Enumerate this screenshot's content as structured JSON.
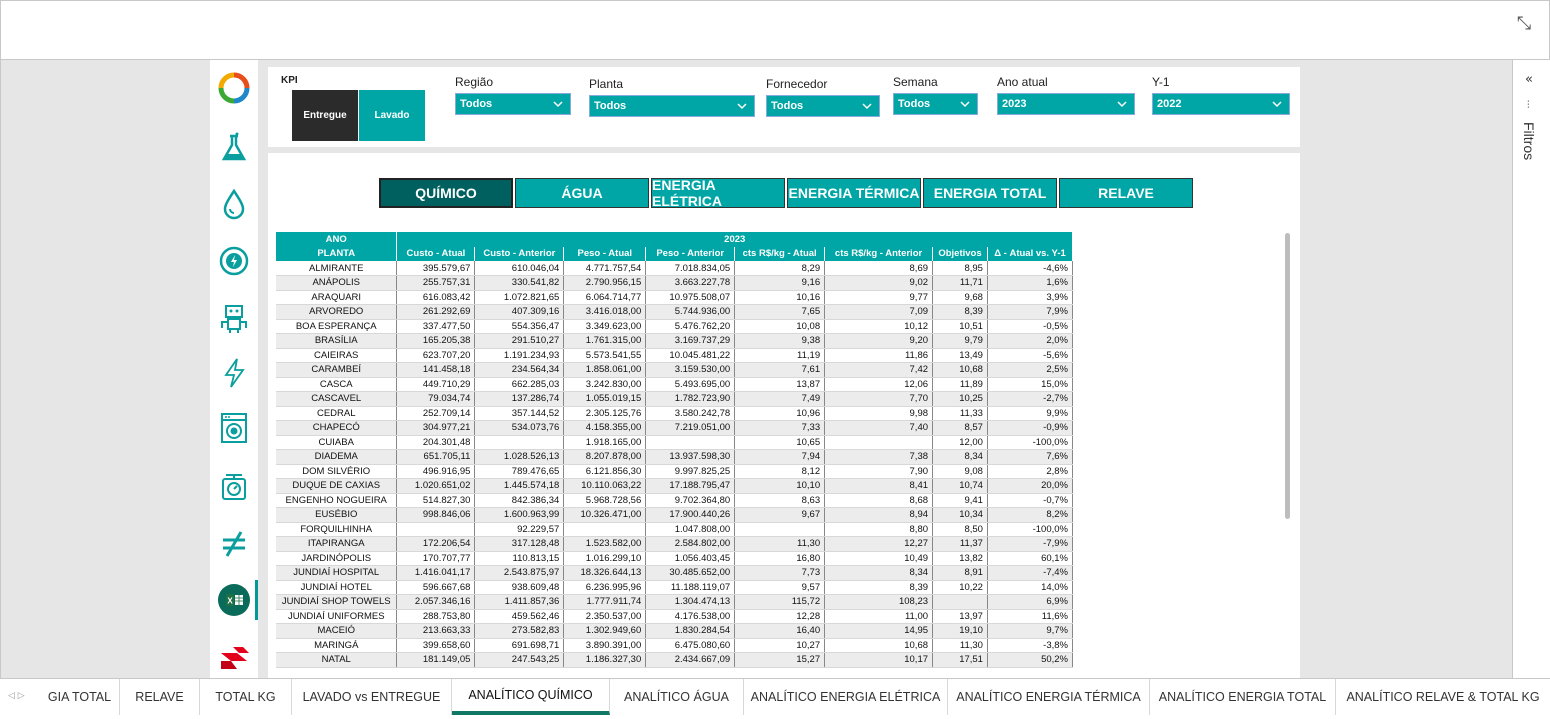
{
  "kpi": {
    "label": "KPI",
    "options": [
      "Entregue",
      "Lavado"
    ]
  },
  "filters": [
    {
      "label": "Região",
      "value": "Todos"
    },
    {
      "label": "Planta",
      "value": "Todos"
    },
    {
      "label": "Fornecedor",
      "value": "Todos"
    },
    {
      "label": "Semana",
      "value": "Todos"
    },
    {
      "label": "Ano atual",
      "value": "2023"
    },
    {
      "label": "Y-1",
      "value": "2022"
    }
  ],
  "tabs": [
    "QUÍMICO",
    "ÁGUA",
    "ENERGIA ELÉTRICA",
    "ENERGIA TÉRMICA",
    "ENERGIA TOTAL",
    "RELAVE"
  ],
  "table": {
    "ano_label": "ANO",
    "year": "2023",
    "planta_label": "PLANTA",
    "columns": [
      "Custo - Atual",
      "Custo - Anterior",
      "Peso - Atual",
      "Peso - Anterior",
      "cts R$/kg - Atual",
      "cts R$/kg - Anterior",
      "Objetivos",
      "Δ - Atual vs. Y-1"
    ],
    "rows": [
      [
        "ALMIRANTE",
        "395.579,67",
        "610.046,04",
        "4.771.757,54",
        "7.018.834,05",
        "8,29",
        "8,69",
        "8,95",
        "-4,6%"
      ],
      [
        "ANÁPOLIS",
        "255.757,31",
        "330.541,82",
        "2.790.956,15",
        "3.663.227,78",
        "9,16",
        "9,02",
        "11,71",
        "1,6%"
      ],
      [
        "ARAQUARI",
        "616.083,42",
        "1.072.821,65",
        "6.064.714,77",
        "10.975.508,07",
        "10,16",
        "9,77",
        "9,68",
        "3,9%"
      ],
      [
        "ARVOREDO",
        "261.292,69",
        "407.309,16",
        "3.416.018,00",
        "5.744.936,00",
        "7,65",
        "7,09",
        "8,39",
        "7,9%"
      ],
      [
        "BOA ESPERANÇA",
        "337.477,50",
        "554.356,47",
        "3.349.623,00",
        "5.476.762,20",
        "10,08",
        "10,12",
        "10,51",
        "-0,5%"
      ],
      [
        "BRASÍLIA",
        "165.205,38",
        "291.510,27",
        "1.761.315,00",
        "3.169.737,29",
        "9,38",
        "9,20",
        "9,79",
        "2,0%"
      ],
      [
        "CAIEIRAS",
        "623.707,20",
        "1.191.234,93",
        "5.573.541,55",
        "10.045.481,22",
        "11,19",
        "11,86",
        "13,49",
        "-5,6%"
      ],
      [
        "CARAMBEÍ",
        "141.458,18",
        "234.564,34",
        "1.858.061,00",
        "3.159.530,00",
        "7,61",
        "7,42",
        "10,68",
        "2,5%"
      ],
      [
        "CASCA",
        "449.710,29",
        "662.285,03",
        "3.242.830,00",
        "5.493.695,00",
        "13,87",
        "12,06",
        "11,89",
        "15,0%"
      ],
      [
        "CASCAVEL",
        "79.034,74",
        "137.286,74",
        "1.055.019,15",
        "1.782.723,90",
        "7,49",
        "7,70",
        "10,25",
        "-2,7%"
      ],
      [
        "CEDRAL",
        "252.709,14",
        "357.144,52",
        "2.305.125,76",
        "3.580.242,78",
        "10,96",
        "9,98",
        "11,33",
        "9,9%"
      ],
      [
        "CHAPECÓ",
        "304.977,21",
        "534.073,76",
        "4.158.355,00",
        "7.219.051,00",
        "7,33",
        "7,40",
        "8,57",
        "-0,9%"
      ],
      [
        "CUIABA",
        "204.301,48",
        "",
        "1.918.165,00",
        "",
        "10,65",
        "",
        "12,00",
        "-100,0%"
      ],
      [
        "DIADEMA",
        "651.705,11",
        "1.028.526,13",
        "8.207.878,00",
        "13.937.598,30",
        "7,94",
        "7,38",
        "8,34",
        "7,6%"
      ],
      [
        "DOM SILVÉRIO",
        "496.916,95",
        "789.476,65",
        "6.121.856,30",
        "9.997.825,25",
        "8,12",
        "7,90",
        "9,08",
        "2,8%"
      ],
      [
        "DUQUE DE CAXIAS",
        "1.020.651,02",
        "1.445.574,18",
        "10.110.063,22",
        "17.188.795,47",
        "10,10",
        "8,41",
        "10,74",
        "20,0%"
      ],
      [
        "ENGENHO NOGUEIRA",
        "514.827,30",
        "842.386,34",
        "5.968.728,56",
        "9.702.364,80",
        "8,63",
        "8,68",
        "9,41",
        "-0,7%"
      ],
      [
        "EUSÉBIO",
        "998.846,06",
        "1.600.963,99",
        "10.326.471,00",
        "17.900.440,26",
        "9,67",
        "8,94",
        "10,34",
        "8,2%"
      ],
      [
        "FORQUILHINHA",
        "",
        "92.229,57",
        "",
        "1.047.808,00",
        "",
        "8,80",
        "8,50",
        "-100,0%"
      ],
      [
        "ITAPIRANGA",
        "172.206,54",
        "317.128,48",
        "1.523.582,00",
        "2.584.802,00",
        "11,30",
        "12,27",
        "11,37",
        "-7,9%"
      ],
      [
        "JARDINÓPOLIS",
        "170.707,77",
        "110.813,15",
        "1.016.299,10",
        "1.056.403,45",
        "16,80",
        "10,49",
        "13,82",
        "60,1%"
      ],
      [
        "JUNDIAÍ HOSPITAL",
        "1.416.041,17",
        "2.543.875,97",
        "18.326.644,13",
        "30.485.652,00",
        "7,73",
        "8,34",
        "8,91",
        "-7,4%"
      ],
      [
        "JUNDIAÍ HOTEL",
        "596.667,68",
        "938.609,48",
        "6.236.995,96",
        "11.188.119,07",
        "9,57",
        "8,39",
        "10,22",
        "14,0%"
      ],
      [
        "JUNDIAÍ SHOP TOWELS",
        "2.057.346,16",
        "1.411.857,36",
        "1.777.911,74",
        "1.304.474,13",
        "115,72",
        "108,23",
        "",
        "6,9%"
      ],
      [
        "JUNDIAÍ UNIFORMES",
        "288.753,80",
        "459.562,46",
        "2.350.537,00",
        "4.176.538,00",
        "12,28",
        "11,00",
        "13,97",
        "11,6%"
      ],
      [
        "MACEIÓ",
        "213.663,33",
        "273.582,83",
        "1.302.949,60",
        "1.830.284,54",
        "16,40",
        "14,95",
        "19,10",
        "9,7%"
      ],
      [
        "MARINGÁ",
        "399.658,60",
        "691.698,71",
        "3.890.391,00",
        "6.475.080,60",
        "10,27",
        "10,68",
        "11,30",
        "-3,8%"
      ],
      [
        "NATAL",
        "181.149,05",
        "247.543,25",
        "1.186.327,30",
        "2.434.667,09",
        "15,27",
        "10,17",
        "17,51",
        "50,2%"
      ]
    ]
  },
  "filters_pane": {
    "label": "Filtros"
  },
  "pages": [
    "GIA TOTAL",
    "RELAVE",
    "TOTAL KG",
    "LAVADO vs ENTREGUE",
    "ANALÍTICO QUÍMICO",
    "ANALÍTICO ÁGUA",
    "ANALÍTICO ENERGIA ELÉTRICA",
    "ANALÍTICO ENERGIA TÉRMICA",
    "ANALÍTICO ENERGIA TOTAL",
    "ANALÍTICO RELAVE & TOTAL KG"
  ],
  "icons": [
    "recycle-icon",
    "flask-icon",
    "water-drop-icon",
    "energy-cycle-icon",
    "robot-icon",
    "lightning-icon",
    "washing-machine-icon",
    "scale-icon",
    "not-equal-icon",
    "excel-icon",
    "brand-logo-icon"
  ],
  "colors": {
    "teal": "#00a6a6",
    "dark_teal": "#005f5f",
    "dark": "#2b2b2b",
    "active_page": "#117865"
  }
}
